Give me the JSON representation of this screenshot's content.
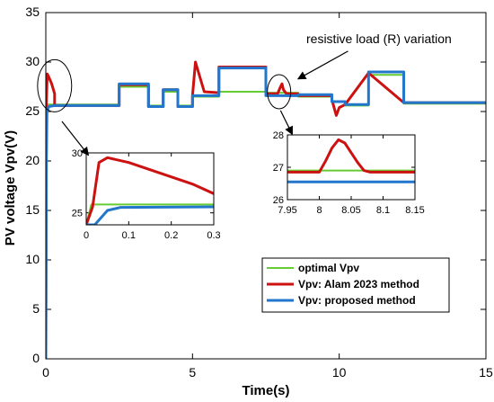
{
  "chart_data": {
    "type": "line",
    "xlabel": "Time(s)",
    "ylabel": "PV voltage Vpv(V)",
    "xlim": [
      0,
      15
    ],
    "ylim": [
      0,
      35
    ],
    "xticks": [
      "0",
      "5",
      "10",
      "15"
    ],
    "yticks": [
      "0",
      "5",
      "10",
      "15",
      "20",
      "25",
      "30",
      "35"
    ],
    "grid": false,
    "legend_position": "bottom-right",
    "colors": {
      "optimal": "#66cc33",
      "alam": "#cc1111",
      "proposed": "#2277cc"
    },
    "annotation": "resistive load (R) variation",
    "series": [
      {
        "name": "optimal Vpv",
        "x": [
          0.0,
          0.02,
          0.03,
          2.5,
          2.5,
          3.5,
          3.5,
          4.0,
          4.0,
          4.5,
          4.5,
          5.0,
          5.0,
          5.9,
          5.9,
          7.5,
          7.5,
          8.6,
          8.6,
          9.75,
          9.75,
          10.2,
          10.2,
          11.0,
          11.0,
          12.2,
          12.2,
          15.0
        ],
        "values": [
          0.0,
          20.0,
          25.7,
          25.7,
          27.5,
          27.5,
          25.6,
          25.6,
          27.0,
          27.0,
          25.6,
          25.6,
          26.5,
          26.5,
          27.0,
          27.0,
          26.9,
          26.9,
          26.5,
          26.5,
          26.0,
          26.0,
          25.6,
          25.6,
          28.7,
          28.7,
          25.8,
          25.8
        ]
      },
      {
        "name": "Vpv: Alam 2023 method",
        "x": [
          0.0,
          0.02,
          0.05,
          0.1,
          0.2,
          0.3,
          0.3,
          2.5,
          2.5,
          3.5,
          3.5,
          4.0,
          4.0,
          4.5,
          4.5,
          5.0,
          5.0,
          5.1,
          5.4,
          5.9,
          5.9,
          7.5,
          7.5,
          7.9,
          8.0,
          8.05,
          8.1,
          8.2,
          8.6,
          8.6,
          9.75,
          9.75,
          9.9,
          10.0,
          10.2,
          10.2,
          11.0,
          11.0,
          12.2,
          12.2,
          15.0
        ],
        "values": [
          0.0,
          26.0,
          28.8,
          28.5,
          27.8,
          26.8,
          25.6,
          25.6,
          27.7,
          27.7,
          25.5,
          25.5,
          27.2,
          27.2,
          25.5,
          25.5,
          26.6,
          30.0,
          27.0,
          26.9,
          29.5,
          29.5,
          26.8,
          26.8,
          27.5,
          27.8,
          27.2,
          26.8,
          26.8,
          26.6,
          26.6,
          26.2,
          24.6,
          25.4,
          25.7,
          25.7,
          28.9,
          28.9,
          25.9,
          25.9,
          25.9
        ]
      },
      {
        "name": "Vpv: proposed method",
        "x": [
          0.0,
          0.02,
          0.04,
          0.1,
          0.3,
          2.5,
          2.5,
          3.5,
          3.5,
          4.0,
          4.0,
          4.5,
          4.5,
          5.0,
          5.0,
          5.9,
          5.9,
          7.5,
          7.5,
          8.6,
          8.6,
          9.75,
          9.75,
          10.2,
          10.2,
          11.0,
          11.0,
          12.2,
          12.2,
          15.0
        ],
        "values": [
          0.0,
          20.0,
          25.0,
          25.5,
          25.6,
          25.6,
          27.8,
          27.8,
          25.5,
          25.5,
          27.2,
          27.2,
          25.5,
          25.5,
          26.6,
          26.6,
          29.4,
          29.4,
          26.6,
          26.6,
          26.7,
          26.7,
          26.0,
          26.0,
          25.7,
          25.7,
          29.0,
          29.0,
          25.9,
          25.9
        ]
      }
    ],
    "insets": [
      {
        "xlim": [
          0,
          0.3
        ],
        "ylim": [
          24,
          30
        ],
        "xticks": [
          "0",
          "0.1",
          "0.2",
          "0.3"
        ],
        "yticks": [
          "25",
          "30"
        ],
        "series": [
          {
            "name": "optimal Vpv",
            "x": [
              0.0,
              0.012,
              0.3
            ],
            "values": [
              24.0,
              25.7,
              25.7
            ]
          },
          {
            "name": "Vpv: Alam 2023 method",
            "x": [
              0.0,
              0.015,
              0.03,
              0.05,
              0.1,
              0.15,
              0.2,
              0.25,
              0.3
            ],
            "values": [
              24.0,
              25.5,
              29.2,
              29.6,
              29.2,
              28.6,
              28.0,
              27.4,
              26.6
            ]
          },
          {
            "name": "Vpv: proposed method",
            "x": [
              0.0,
              0.02,
              0.035,
              0.05,
              0.08,
              0.3
            ],
            "values": [
              24.0,
              24.0,
              24.6,
              25.2,
              25.45,
              25.5
            ]
          }
        ]
      },
      {
        "xlim": [
          7.95,
          8.15
        ],
        "ylim": [
          26,
          28
        ],
        "xticks": [
          "7.95",
          "8",
          "8.05",
          "8.1",
          "8.15"
        ],
        "yticks": [
          "26",
          "27",
          "28"
        ],
        "series": [
          {
            "name": "optimal Vpv",
            "x": [
              7.95,
              8.15
            ],
            "values": [
              26.9,
              26.9
            ]
          },
          {
            "name": "Vpv: Alam 2023 method",
            "x": [
              7.95,
              8.0,
              8.01,
              8.02,
              8.03,
              8.04,
              8.05,
              8.06,
              8.07,
              8.08,
              8.15
            ],
            "values": [
              26.85,
              26.85,
              27.2,
              27.6,
              27.85,
              27.75,
              27.45,
              27.15,
              26.9,
              26.85,
              26.85
            ]
          },
          {
            "name": "Vpv: proposed method",
            "x": [
              7.95,
              8.15
            ],
            "values": [
              26.55,
              26.55
            ]
          }
        ]
      }
    ]
  }
}
